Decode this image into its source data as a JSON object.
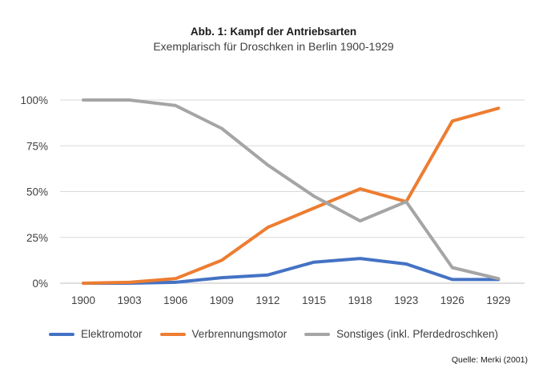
{
  "chart_data": {
    "type": "line",
    "title": "Abb. 1: Kampf der Antriebsarten",
    "subtitle": "Exemplarisch für Droschken in Berlin 1900-1929",
    "source": "Quelle: Merki (2001)",
    "categories": [
      "1900",
      "1903",
      "1906",
      "1909",
      "1912",
      "1915",
      "1918",
      "1923",
      "1926",
      "1929"
    ],
    "y_ticks": [
      "0%",
      "25%",
      "50%",
      "75%",
      "100%"
    ],
    "ylim": [
      0,
      100
    ],
    "grid": true,
    "legend_position": "bottom",
    "series": [
      {
        "name": "Elektromotor",
        "color": "#4472C4",
        "values": [
          0,
          0,
          0.5,
          3,
          4.5,
          11.5,
          13.5,
          10.5,
          2,
          2
        ]
      },
      {
        "name": "Verbrennungsmotor",
        "color": "#ED7D31",
        "values": [
          0,
          0.5,
          2.5,
          12.5,
          30.5,
          41,
          51.5,
          44.5,
          88.5,
          95.5
        ]
      },
      {
        "name": "Sonstiges (inkl. Pferdedroschken)",
        "color": "#A5A5A5",
        "values": [
          100,
          100,
          97,
          84.5,
          64.5,
          47.5,
          34,
          44.5,
          8.5,
          2.5
        ]
      }
    ]
  }
}
